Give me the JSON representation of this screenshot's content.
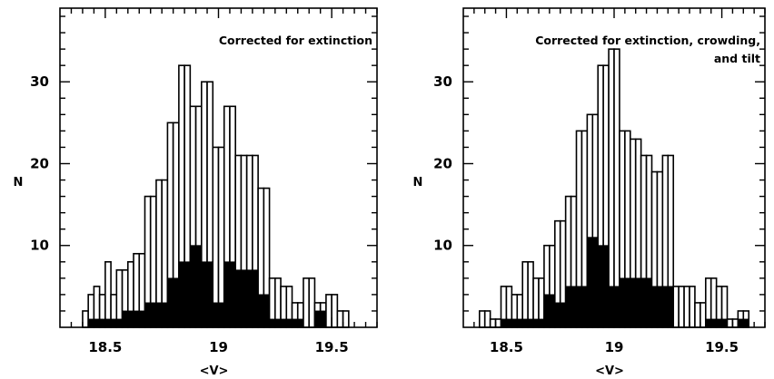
{
  "chart_data": [
    {
      "type": "bar",
      "panel": "left",
      "xlabel": "<V>",
      "ylabel": "N",
      "annotation": [
        "Corrected for extinction"
      ],
      "xlim": [
        18.3,
        19.7
      ],
      "ylim": [
        0,
        39
      ],
      "x_ticks": [
        "18.5",
        "19",
        "19.5"
      ],
      "y_ticks": [
        "10",
        "20",
        "30"
      ],
      "bin_width": 0.025,
      "bin_starts": [
        18.375,
        18.4,
        18.425,
        18.45,
        18.475,
        18.5,
        18.525,
        18.55,
        18.575,
        18.6,
        18.625,
        18.65,
        18.675,
        18.7,
        18.725,
        18.75,
        18.775,
        18.8,
        18.825,
        18.85,
        18.875,
        18.9,
        18.925,
        18.95,
        18.975,
        19.0,
        19.025,
        19.05,
        19.075,
        19.1,
        19.125,
        19.15,
        19.175,
        19.2,
        19.225,
        19.25,
        19.275,
        19.3,
        19.325,
        19.35,
        19.375,
        19.4,
        19.425,
        19.45,
        19.475,
        19.5,
        19.525,
        19.55
      ],
      "series": [
        {
          "fill": "#ffffff",
          "values": [
            0,
            2,
            4,
            5,
            4,
            8,
            4,
            7,
            7,
            8,
            9,
            9,
            16,
            16,
            18,
            18,
            25,
            25,
            32,
            32,
            27,
            27,
            30,
            30,
            22,
            22,
            27,
            27,
            21,
            21,
            21,
            21,
            17,
            17,
            6,
            6,
            5,
            5,
            3,
            3,
            6,
            6,
            3,
            3,
            4,
            4,
            2,
            2
          ]
        },
        {
          "fill": "#000000",
          "values": [
            0,
            0,
            1,
            1,
            1,
            1,
            1,
            1,
            2,
            2,
            2,
            2,
            3,
            3,
            3,
            3,
            6,
            6,
            8,
            8,
            10,
            10,
            8,
            8,
            3,
            3,
            8,
            8,
            7,
            7,
            7,
            7,
            4,
            4,
            1,
            1,
            1,
            1,
            1,
            1,
            0,
            0,
            2,
            2,
            0,
            0,
            0,
            0
          ]
        }
      ]
    },
    {
      "type": "bar",
      "panel": "right",
      "xlabel": "<V>",
      "ylabel": "N",
      "annotation": [
        "Corrected for extinction, crowding,",
        "and tilt"
      ],
      "xlim": [
        18.3,
        19.7
      ],
      "ylim": [
        0,
        39
      ],
      "x_ticks": [
        "18.5",
        "19",
        "19.5"
      ],
      "y_ticks": [
        "10",
        "20",
        "30"
      ],
      "bin_width": 0.025,
      "bin_starts": [
        18.375,
        18.4,
        18.425,
        18.45,
        18.475,
        18.5,
        18.525,
        18.55,
        18.575,
        18.6,
        18.625,
        18.65,
        18.675,
        18.7,
        18.725,
        18.75,
        18.775,
        18.8,
        18.825,
        18.85,
        18.875,
        18.9,
        18.925,
        18.95,
        18.975,
        19.0,
        19.025,
        19.05,
        19.075,
        19.1,
        19.125,
        19.15,
        19.175,
        19.2,
        19.225,
        19.25,
        19.275,
        19.3,
        19.325,
        19.35,
        19.375,
        19.4,
        19.425,
        19.45,
        19.475,
        19.5,
        19.525,
        19.55,
        19.575,
        19.6
      ],
      "series": [
        {
          "fill": "#ffffff",
          "values": [
            2,
            2,
            1,
            1,
            5,
            5,
            4,
            4,
            8,
            8,
            6,
            6,
            10,
            10,
            13,
            13,
            16,
            16,
            24,
            24,
            26,
            26,
            32,
            32,
            34,
            34,
            24,
            24,
            23,
            23,
            21,
            21,
            19,
            19,
            21,
            21,
            5,
            5,
            5,
            5,
            3,
            3,
            6,
            6,
            5,
            5,
            1,
            1,
            2,
            2
          ]
        },
        {
          "fill": "#000000",
          "values": [
            0,
            0,
            0,
            0,
            1,
            1,
            1,
            1,
            1,
            1,
            1,
            1,
            4,
            4,
            3,
            3,
            5,
            5,
            5,
            5,
            11,
            11,
            10,
            10,
            5,
            5,
            6,
            6,
            6,
            6,
            6,
            6,
            5,
            5,
            5,
            5,
            0,
            0,
            0,
            0,
            0,
            0,
            1,
            1,
            1,
            1,
            0,
            0,
            1,
            1
          ]
        }
      ]
    }
  ]
}
